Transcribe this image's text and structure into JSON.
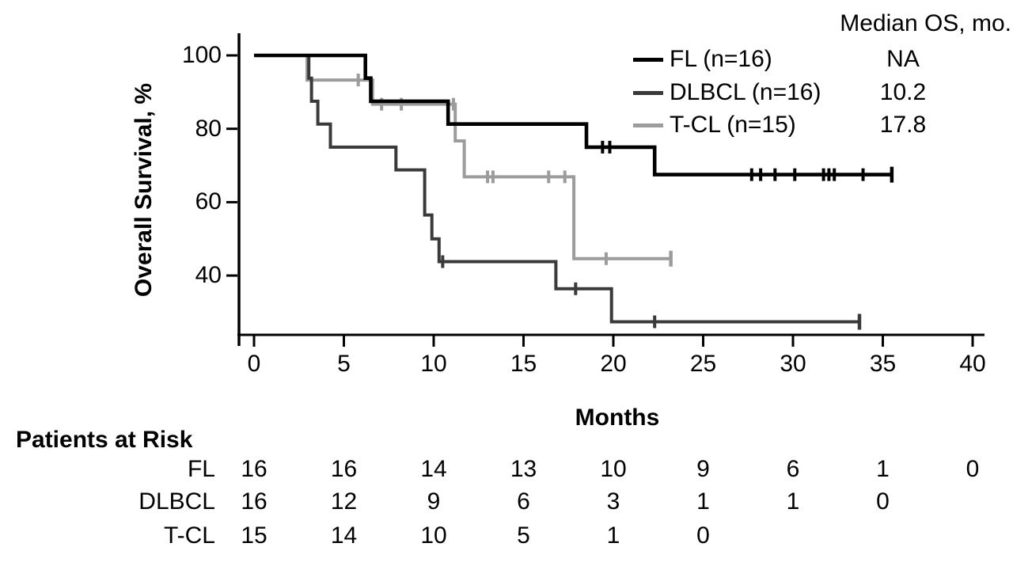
{
  "chart_data": {
    "type": "line",
    "subtype": "kaplan-meier-step",
    "ylabel": "Overall Survival, %",
    "xlabel": "Months",
    "x_ticks": [
      0,
      5,
      10,
      15,
      20,
      25,
      30,
      35,
      40
    ],
    "y_ticks": [
      100,
      80,
      60,
      40
    ],
    "xlim": [
      0,
      40.6
    ],
    "ylim": [
      23.8,
      100
    ],
    "grid": false,
    "legend": {
      "position": "top-right",
      "header": "Median OS, mo.",
      "entries": [
        {
          "label": "FL (n=16)",
          "median": "NA",
          "color": "#000000"
        },
        {
          "label": "DLBCL (n=16)",
          "median": "10.2",
          "color": "#3a3a3a"
        },
        {
          "label": "T-CL (n=15)",
          "median": "17.8",
          "color": "#9c9c9c"
        }
      ]
    },
    "series": [
      {
        "name": "FL",
        "color": "#000000",
        "stroke_width": 4.6,
        "steps": [
          [
            0,
            100
          ],
          [
            6.2,
            100
          ],
          [
            6.2,
            93.8
          ],
          [
            6.5,
            93.8
          ],
          [
            6.5,
            87.5
          ],
          [
            10.8,
            87.5
          ],
          [
            10.8,
            81.3
          ],
          [
            18.5,
            81.3
          ],
          [
            18.5,
            75
          ],
          [
            22.3,
            75
          ],
          [
            22.3,
            67.5
          ],
          [
            35.5,
            67.5
          ]
        ],
        "censors": [
          [
            19.4,
            75
          ],
          [
            19.8,
            75
          ],
          [
            27.7,
            67.5
          ],
          [
            28.2,
            67.5
          ],
          [
            29.0,
            67.5
          ],
          [
            30.1,
            67.5
          ],
          [
            31.7,
            67.5
          ],
          [
            32.0,
            67.5
          ],
          [
            32.3,
            67.5
          ],
          [
            33.9,
            67.5
          ]
        ],
        "end_tick": [
          35.5,
          67.5
        ]
      },
      {
        "name": "DLBCL",
        "color": "#3a3a3a",
        "stroke_width": 4,
        "steps": [
          [
            0,
            100
          ],
          [
            3.05,
            100
          ],
          [
            3.05,
            93.8
          ],
          [
            3.2,
            93.8
          ],
          [
            3.2,
            87.5
          ],
          [
            3.55,
            87.5
          ],
          [
            3.55,
            81.3
          ],
          [
            4.25,
            81.3
          ],
          [
            4.25,
            75
          ],
          [
            7.9,
            75
          ],
          [
            7.9,
            68.8
          ],
          [
            9.5,
            68.8
          ],
          [
            9.5,
            56.5
          ],
          [
            9.9,
            56.5
          ],
          [
            9.9,
            50
          ],
          [
            10.3,
            50
          ],
          [
            10.3,
            43.8
          ],
          [
            16.8,
            43.8
          ],
          [
            16.8,
            36.4
          ],
          [
            19.9,
            36.4
          ],
          [
            19.9,
            27.4
          ],
          [
            33.7,
            27.4
          ]
        ],
        "censors": [
          [
            10.5,
            43.8
          ],
          [
            17.9,
            36.4
          ],
          [
            22.3,
            27.4
          ]
        ],
        "end_tick": [
          33.7,
          27.4
        ]
      },
      {
        "name": "T-CL",
        "color": "#9c9c9c",
        "stroke_width": 4,
        "steps": [
          [
            0,
            100
          ],
          [
            2.95,
            100
          ],
          [
            2.95,
            93.3
          ],
          [
            6.6,
            93.3
          ],
          [
            6.6,
            86.7
          ],
          [
            11.2,
            86.7
          ],
          [
            11.2,
            76.7
          ],
          [
            11.7,
            76.7
          ],
          [
            11.7,
            66.9
          ],
          [
            17.8,
            66.9
          ],
          [
            17.8,
            44.6
          ],
          [
            23.2,
            44.6
          ]
        ],
        "censors": [
          [
            5.8,
            93.3
          ],
          [
            7.1,
            86.7
          ],
          [
            8.2,
            86.7
          ],
          [
            11.1,
            86.7
          ],
          [
            13.0,
            66.9
          ],
          [
            13.3,
            66.9
          ],
          [
            16.4,
            66.9
          ],
          [
            17.3,
            66.9
          ],
          [
            19.6,
            44.6
          ]
        ],
        "end_tick": [
          23.2,
          44.6
        ]
      }
    ],
    "risk_table": {
      "title": "Patients at Risk",
      "time_points": [
        0,
        5,
        10,
        15,
        20,
        25,
        30,
        35,
        40
      ],
      "rows": [
        {
          "label": "FL",
          "values": [
            16,
            16,
            14,
            13,
            10,
            9,
            6,
            1,
            0
          ]
        },
        {
          "label": "DLBCL",
          "values": [
            16,
            12,
            9,
            6,
            3,
            1,
            1,
            0
          ]
        },
        {
          "label": "T-CL",
          "values": [
            15,
            14,
            10,
            5,
            1,
            0
          ]
        }
      ]
    }
  }
}
